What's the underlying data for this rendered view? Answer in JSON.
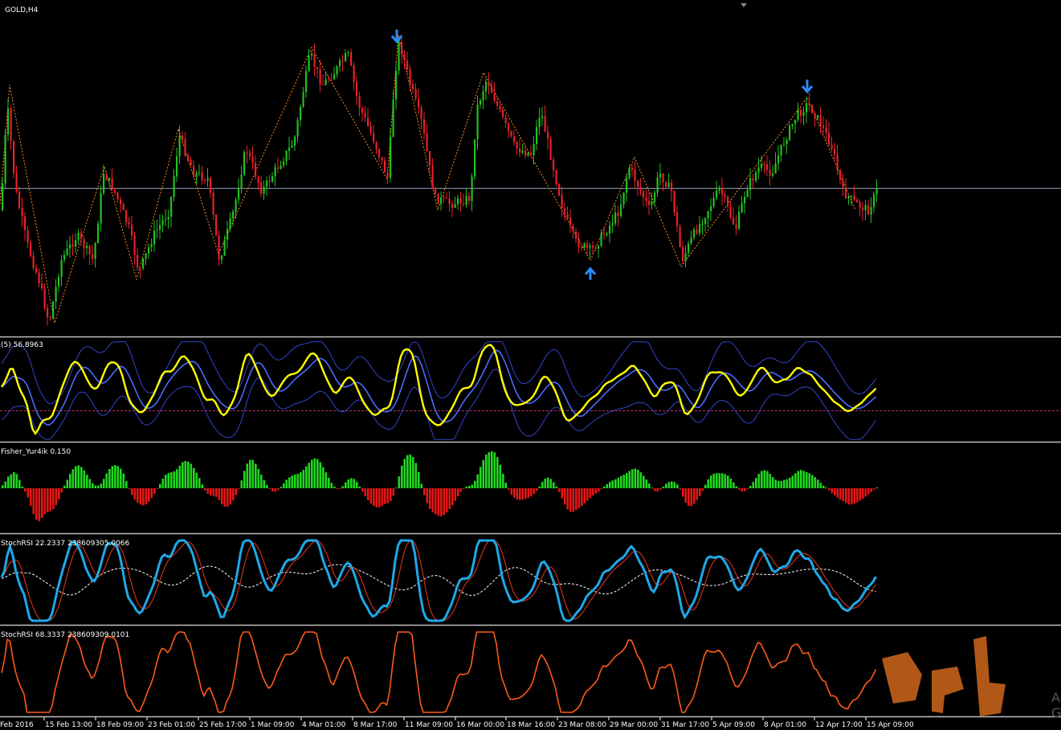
{
  "window": {
    "symbol_label": "GOLD,H4"
  },
  "panes": {
    "stoch": {
      "label": "(5) 56.8963",
      "level": 50
    },
    "fisher": {
      "label": "Fisher_Yur4ik 0.150"
    },
    "stochrsi1": {
      "label": "StochRSI 22.2337 238609305.0066"
    },
    "stochrsi2": {
      "label": "StochRSI 68.3337 238609309.0101"
    }
  },
  "watermark": {
    "text_right": "A",
    "text_right2": "G"
  },
  "colors": {
    "bull": "#22c21f",
    "bear": "#e8212b",
    "zigzag": "#ff8c2a",
    "arrow": "#2b8cff",
    "stoch_main": "#ffff00",
    "band_mid": "#4a6cff",
    "band_outer": "#3344cc",
    "hist_pos": "#1fd81f",
    "hist_neg": "#e81515",
    "rsi_main": "#1fa8e8",
    "rsi_signal": "#e83a1f",
    "rsi_slow": "#ffffff",
    "rsi2": "#ff5a1a"
  },
  "chart_data": {
    "type": "candlestick",
    "symbol": "GOLD",
    "timeframe": "H4",
    "x_tick_labels": [
      "Feb 2016",
      "15 Feb 13:00",
      "18 Feb 09:00",
      "23 Feb 01:00",
      "25 Feb 17:00",
      "1 Mar 09:00",
      "4 Mar 01:00",
      "8 Mar 17:00",
      "11 Mar 09:00",
      "16 Mar 00:00",
      "18 Mar 16:00",
      "23 Mar 08:00",
      "29 Mar 00:00",
      "31 Mar 17:00",
      "5 Apr 09:00",
      "8 Apr 01:00",
      "12 Apr 17:00",
      "15 Apr 09:00"
    ],
    "price_shape": [
      [
        0,
        0.62
      ],
      [
        8,
        0.28
      ],
      [
        18,
        0.55
      ],
      [
        32,
        0.72
      ],
      [
        48,
        0.85
      ],
      [
        60,
        0.98
      ],
      [
        75,
        0.78
      ],
      [
        95,
        0.7
      ],
      [
        115,
        0.78
      ],
      [
        128,
        0.5
      ],
      [
        140,
        0.55
      ],
      [
        160,
        0.68
      ],
      [
        172,
        0.82
      ],
      [
        190,
        0.7
      ],
      [
        210,
        0.62
      ],
      [
        222,
        0.38
      ],
      [
        240,
        0.5
      ],
      [
        258,
        0.52
      ],
      [
        272,
        0.78
      ],
      [
        290,
        0.62
      ],
      [
        305,
        0.42
      ],
      [
        325,
        0.56
      ],
      [
        345,
        0.48
      ],
      [
        365,
        0.4
      ],
      [
        385,
        0.12
      ],
      [
        400,
        0.22
      ],
      [
        415,
        0.18
      ],
      [
        432,
        0.12
      ],
      [
        445,
        0.28
      ],
      [
        465,
        0.4
      ],
      [
        482,
        0.52
      ],
      [
        490,
        0.2
      ],
      [
        496,
        0.08
      ],
      [
        510,
        0.22
      ],
      [
        525,
        0.35
      ],
      [
        540,
        0.58
      ],
      [
        560,
        0.6
      ],
      [
        585,
        0.58
      ],
      [
        592,
        0.3
      ],
      [
        605,
        0.2
      ],
      [
        620,
        0.3
      ],
      [
        640,
        0.42
      ],
      [
        660,
        0.44
      ],
      [
        672,
        0.3
      ],
      [
        685,
        0.45
      ],
      [
        700,
        0.62
      ],
      [
        715,
        0.72
      ],
      [
        735,
        0.75
      ],
      [
        750,
        0.7
      ],
      [
        770,
        0.62
      ],
      [
        782,
        0.48
      ],
      [
        795,
        0.55
      ],
      [
        808,
        0.62
      ],
      [
        820,
        0.5
      ],
      [
        835,
        0.56
      ],
      [
        848,
        0.78
      ],
      [
        862,
        0.7
      ],
      [
        880,
        0.62
      ],
      [
        895,
        0.55
      ],
      [
        915,
        0.68
      ],
      [
        928,
        0.55
      ],
      [
        945,
        0.48
      ],
      [
        960,
        0.5
      ],
      [
        975,
        0.4
      ],
      [
        990,
        0.32
      ],
      [
        1005,
        0.28
      ],
      [
        1020,
        0.34
      ],
      [
        1035,
        0.42
      ],
      [
        1048,
        0.56
      ],
      [
        1065,
        0.6
      ],
      [
        1080,
        0.62
      ],
      [
        1092,
        0.55
      ]
    ],
    "zigzag": [
      [
        0,
        0.6
      ],
      [
        12,
        0.22
      ],
      [
        68,
        0.98
      ],
      [
        130,
        0.48
      ],
      [
        170,
        0.84
      ],
      [
        222,
        0.36
      ],
      [
        272,
        0.76
      ],
      [
        388,
        0.1
      ],
      [
        482,
        0.52
      ],
      [
        496,
        0.06
      ],
      [
        545,
        0.62
      ],
      [
        602,
        0.18
      ],
      [
        735,
        0.78
      ],
      [
        790,
        0.45
      ],
      [
        848,
        0.8
      ],
      [
        1005,
        0.26
      ],
      [
        1065,
        0.62
      ]
    ],
    "arrows": [
      {
        "dir": "down",
        "x": 494
      },
      {
        "dir": "up",
        "x": 735
      },
      {
        "dir": "down",
        "x": 1005
      }
    ],
    "horizontal_line_frac": 0.55
  }
}
